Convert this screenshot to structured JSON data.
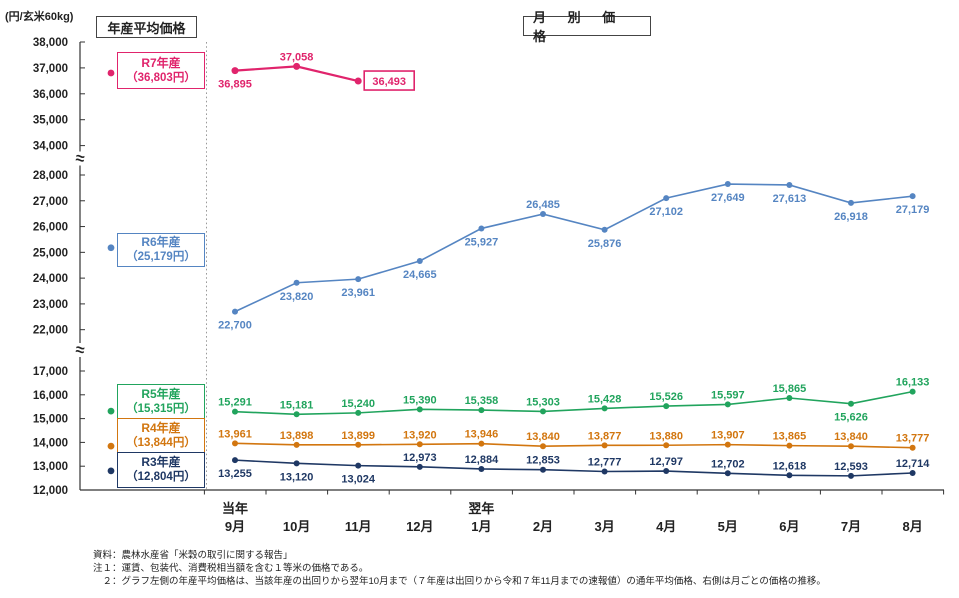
{
  "unit_label": "(円/玄米60kg)",
  "headers": {
    "left": "年産平均価格",
    "right": "月 別 価 格"
  },
  "chart_data": {
    "type": "line",
    "categories": [
      "9月",
      "10月",
      "11月",
      "12月",
      "1月",
      "2月",
      "3月",
      "4月",
      "5月",
      "6月",
      "7月",
      "8月"
    ],
    "year_markers": [
      {
        "label": "当年",
        "month_index": 0
      },
      {
        "label": "翌年",
        "month_index": 4
      }
    ],
    "ylabel": "(円/玄米60kg)",
    "y_axis_segments": [
      {
        "ticks": [
          38000,
          37000,
          36000,
          35000,
          34000
        ]
      },
      {
        "ticks": [
          28000,
          27000,
          26000,
          25000,
          24000,
          23000,
          22000
        ]
      },
      {
        "ticks": [
          17000,
          16000,
          15000,
          14000,
          13000,
          12000
        ]
      }
    ],
    "axis_break_symbol": "≈",
    "grid": false,
    "legend_position": "left-of-plot",
    "series": [
      {
        "name": "R7年産",
        "average_label": "（36,803円）",
        "average": 36803,
        "color": "#e0246c",
        "values": [
          36895,
          37058,
          36493
        ],
        "label_sides": [
          "below",
          "above",
          "box-right"
        ]
      },
      {
        "name": "R6年産",
        "average_label": "（25,179円）",
        "average": 25179,
        "color": "#5585c2",
        "values": [
          22700,
          23820,
          23961,
          24665,
          25927,
          26485,
          25876,
          27102,
          27649,
          27613,
          26918,
          27179
        ],
        "label_sides": [
          "below",
          "below",
          "below",
          "below",
          "below",
          "above",
          "below",
          "below",
          "below",
          "below",
          "below",
          "below"
        ]
      },
      {
        "name": "R5年産",
        "average_label": "（15,315円）",
        "average": 15315,
        "color": "#21a45d",
        "values": [
          15291,
          15181,
          15240,
          15390,
          15358,
          15303,
          15428,
          15526,
          15597,
          15865,
          15626,
          16133
        ],
        "label_sides": [
          "above",
          "above",
          "above",
          "above",
          "above",
          "above",
          "above",
          "above",
          "above",
          "above",
          "below",
          "above"
        ]
      },
      {
        "name": "R4年産",
        "average_label": "（13,844円）",
        "average": 13844,
        "color": "#d2760f",
        "values": [
          13961,
          13898,
          13899,
          13920,
          13946,
          13840,
          13877,
          13880,
          13907,
          13865,
          13840,
          13777
        ],
        "label_sides": [
          "above",
          "above",
          "above",
          "above",
          "above",
          "above",
          "above",
          "above",
          "above",
          "above",
          "above",
          "above"
        ]
      },
      {
        "name": "R3年産",
        "average_label": "（12,804円）",
        "average": 12804,
        "color": "#1f3864",
        "values": [
          13255,
          13120,
          13024,
          12973,
          12884,
          12853,
          12777,
          12797,
          12702,
          12618,
          12593,
          12714
        ],
        "label_sides": [
          "below",
          "below",
          "below",
          "above",
          "above",
          "above",
          "above",
          "above",
          "above",
          "above",
          "above",
          "above"
        ]
      }
    ]
  },
  "footnotes": [
    "資料：農林水産省「米穀の取引に関する報告」",
    "注１：運賃、包装代、消費税相当額を含む１等米の価格である。",
    "　２：グラフ左側の年産平均価格は、当該年産の出回りから翌年10月まで（７年産は出回りから令和７年11月までの速報値）の通年平均価格、右側は月ごとの価格の推移。"
  ]
}
